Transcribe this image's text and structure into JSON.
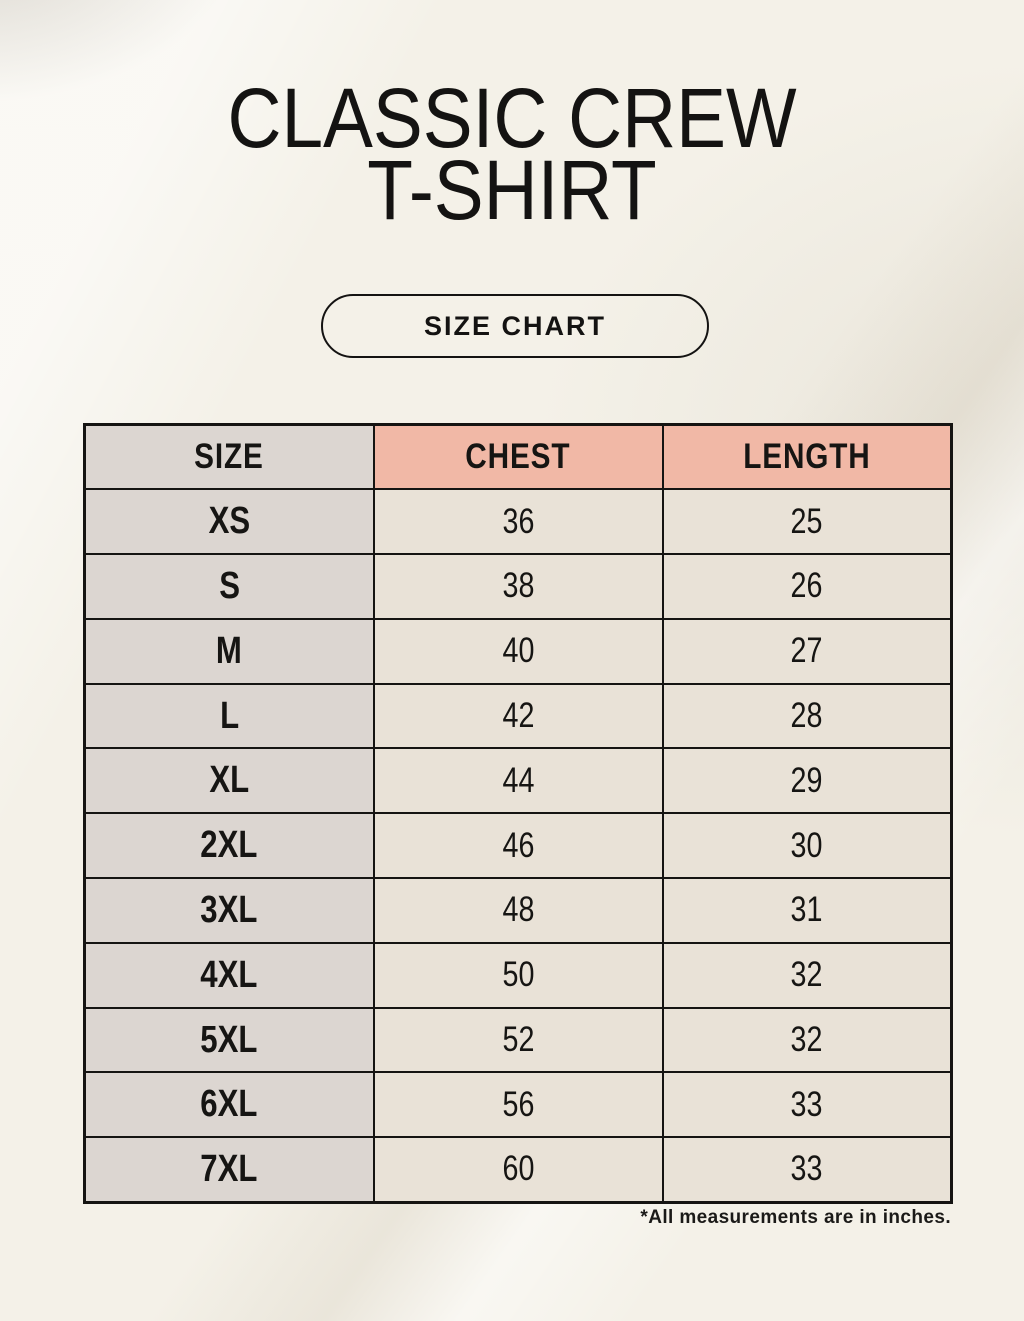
{
  "header": {
    "title_line1": "CLASSIC CREW",
    "title_line2": "T-SHIRT",
    "size_chart_button": "SIZE CHART"
  },
  "footnote": {
    "text": "*All measurements are in inches."
  },
  "colors": {
    "background": "#f4f1e8",
    "size_column_bg": "#dcd6d1",
    "accent_header_bg": "#f1b8a6",
    "value_cell_bg": "#e9e2d7",
    "border": "#151412",
    "text": "#161513"
  },
  "chart_data": {
    "type": "table",
    "title": "CLASSIC CREW T-SHIRT — SIZE CHART",
    "columns": [
      "SIZE",
      "CHEST",
      "LENGTH"
    ],
    "rows": [
      [
        "XS",
        36,
        25
      ],
      [
        "S",
        38,
        26
      ],
      [
        "M",
        40,
        27
      ],
      [
        "L",
        42,
        28
      ],
      [
        "XL",
        44,
        29
      ],
      [
        "2XL",
        46,
        30
      ],
      [
        "3XL",
        48,
        31
      ],
      [
        "4XL",
        50,
        32
      ],
      [
        "5XL",
        52,
        32
      ],
      [
        "6XL",
        56,
        33
      ],
      [
        "7XL",
        60,
        33
      ]
    ],
    "units": "inches",
    "layout": "3 equal columns, full black grid, header row with gray SIZE cell and salmon CHEST/LENGTH cells"
  }
}
